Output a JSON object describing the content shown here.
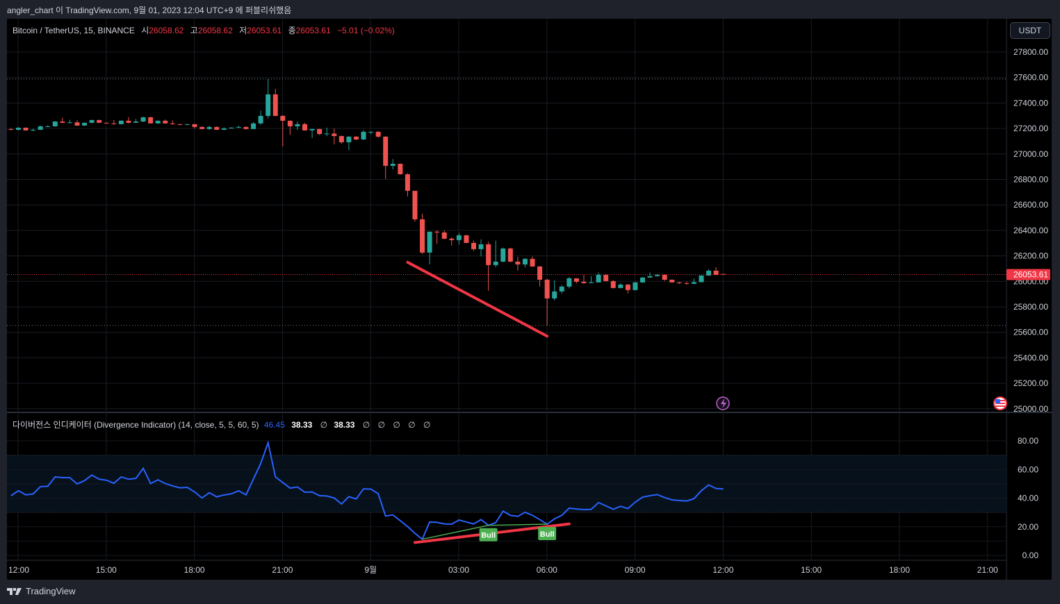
{
  "header": {
    "publish_note": "angler_chart 이 TradingView.com, 9월 01, 2023 12:04 UTC+9 에 퍼블리쉬했음"
  },
  "legend": {
    "symbol": "Bitcoin / TetherUS, 15, BINANCE",
    "open_label": "시",
    "open": "26058.62",
    "high_label": "고",
    "high": "26058.62",
    "low_label": "저",
    "low": "26053.61",
    "close_label": "종",
    "close": "26053.61",
    "change": "−5.01 (−0.02%)"
  },
  "currency_button": "USDT",
  "last_price_label": "26053.61",
  "indicator_legend": {
    "title": "다이버전스 인디케이터 (Divergence Indicator) (14, close, 5, 5, 60, 5)",
    "value_rsi": "46.45",
    "value_2": "38.33",
    "value_3": "38.33",
    "empty_values": [
      "∅",
      "∅",
      "∅",
      "∅",
      "∅",
      "∅"
    ]
  },
  "branding": "TradingView",
  "colors": {
    "up": "#26a69a",
    "down": "#ef5350",
    "rsi_line": "#2962ff",
    "bull_label": "#4caf50",
    "drawing": "#f23645",
    "last_price": "#f23645"
  },
  "icons": [
    "lightning-event-icon",
    "us-flag-economic-event-icon",
    "tradingview-logo-icon"
  ],
  "chart_data": [
    {
      "type": "candlestick",
      "title": "Bitcoin / TetherUS, 15, BINANCE",
      "interval": "15",
      "x_tick_labels": [
        "12:00",
        "15:00",
        "18:00",
        "21:00",
        "9월",
        "03:00",
        "06:00",
        "09:00",
        "12:00",
        "15:00",
        "18:00",
        "21:00"
      ],
      "y_tick_labels": [
        "27800.00",
        "27600.00",
        "27400.00",
        "27200.00",
        "27000.00",
        "26800.00",
        "26600.00",
        "26400.00",
        "26200.00",
        "26000.00",
        "25800.00",
        "25600.00",
        "25400.00",
        "25200.00",
        "25000.00"
      ],
      "ylim": [
        25000,
        27800
      ],
      "grid": true,
      "ohlc": [
        [
          27195,
          27205,
          27185,
          27190
        ],
        [
          27190,
          27212,
          27185,
          27206
        ],
        [
          27206,
          27210,
          27182,
          27185
        ],
        [
          27185,
          27198,
          27180,
          27190
        ],
        [
          27190,
          27222,
          27188,
          27217
        ],
        [
          27217,
          27226,
          27214,
          27217
        ],
        [
          27217,
          27258,
          27214,
          27255
        ],
        [
          27255,
          27285,
          27242,
          27245
        ],
        [
          27245,
          27268,
          27244,
          27248
        ],
        [
          27248,
          27265,
          27220,
          27223
        ],
        [
          27223,
          27248,
          27220,
          27245
        ],
        [
          27245,
          27270,
          27240,
          27266
        ],
        [
          27266,
          27270,
          27242,
          27245
        ],
        [
          27245,
          27248,
          27238,
          27240
        ],
        [
          27240,
          27266,
          27230,
          27234
        ],
        [
          27234,
          27264,
          27232,
          27261
        ],
        [
          27261,
          27290,
          27240,
          27245
        ],
        [
          27245,
          27275,
          27250,
          27255
        ],
        [
          27255,
          27292,
          27250,
          27288
        ],
        [
          27288,
          27293,
          27238,
          27240
        ],
        [
          27240,
          27264,
          27236,
          27261
        ],
        [
          27261,
          27270,
          27238,
          27240
        ],
        [
          27240,
          27262,
          27230,
          27234
        ],
        [
          27234,
          27236,
          27225,
          27229
        ],
        [
          27229,
          27236,
          27226,
          27234
        ],
        [
          27234,
          27236,
          27200,
          27212
        ],
        [
          27212,
          27218,
          27192,
          27196
        ],
        [
          27196,
          27222,
          27190,
          27212
        ],
        [
          27212,
          27216,
          27188,
          27190
        ],
        [
          27190,
          27210,
          27188,
          27201
        ],
        [
          27201,
          27210,
          27200,
          27207
        ],
        [
          27207,
          27222,
          27204,
          27212
        ],
        [
          27212,
          27218,
          27192,
          27196
        ],
        [
          27196,
          27250,
          27194,
          27240
        ],
        [
          27240,
          27340,
          27230,
          27299
        ],
        [
          27299,
          27588,
          27280,
          27468
        ],
        [
          27468,
          27511,
          27296,
          27299
        ],
        [
          27299,
          27305,
          27060,
          27261
        ],
        [
          27261,
          27264,
          27150,
          27217
        ],
        [
          27217,
          27256,
          27190,
          27234
        ],
        [
          27234,
          27245,
          27183,
          27185
        ],
        [
          27185,
          27197,
          27125,
          27196
        ],
        [
          27196,
          27198,
          27148,
          27157
        ],
        [
          27157,
          27207,
          27140,
          27160
        ],
        [
          27160,
          27200,
          27075,
          27141
        ],
        [
          27141,
          27144,
          27080,
          27092
        ],
        [
          27092,
          27140,
          27030,
          27136
        ],
        [
          27136,
          27140,
          27108,
          27114
        ],
        [
          27114,
          27186,
          27110,
          27174
        ],
        [
          27174,
          27178,
          27155,
          27174
        ],
        [
          27174,
          27180,
          27128,
          27136
        ],
        [
          27136,
          27140,
          26804,
          26907
        ],
        [
          26907,
          26960,
          26880,
          26923
        ],
        [
          26923,
          26925,
          26838,
          26841
        ],
        [
          26841,
          26850,
          26667,
          26711
        ],
        [
          26711,
          26711,
          26470,
          26487
        ],
        [
          26487,
          26530,
          26215,
          26226
        ],
        [
          26226,
          26390,
          26133,
          26390
        ],
        [
          26390,
          26400,
          26296,
          26384
        ],
        [
          26384,
          26400,
          26330,
          26335
        ],
        [
          26335,
          26345,
          26280,
          26324
        ],
        [
          26324,
          26380,
          26290,
          26362
        ],
        [
          26362,
          26365,
          26300,
          26302
        ],
        [
          26302,
          26320,
          26240,
          26253
        ],
        [
          26253,
          26330,
          26195,
          26291
        ],
        [
          26291,
          26310,
          25926,
          26128
        ],
        [
          26128,
          26320,
          26110,
          26155
        ],
        [
          26155,
          26265,
          26150,
          26258
        ],
        [
          26258,
          26265,
          26150,
          26155
        ],
        [
          26155,
          26192,
          26085,
          26133
        ],
        [
          26133,
          26182,
          26110,
          26177
        ],
        [
          26177,
          26195,
          26115,
          26117
        ],
        [
          26117,
          26120,
          25960,
          26013
        ],
        [
          26013,
          26020,
          25654,
          25866
        ],
        [
          25866,
          26008,
          25850,
          25921
        ],
        [
          25921,
          25970,
          25905,
          25959
        ],
        [
          25959,
          26035,
          25945,
          26024
        ],
        [
          26024,
          26025,
          25985,
          25997
        ],
        [
          25997,
          26050,
          25982,
          25986
        ],
        [
          25986,
          26040,
          25985,
          25992
        ],
        [
          25992,
          26070,
          25990,
          26051
        ],
        [
          26051,
          26058,
          26000,
          26002
        ],
        [
          26002,
          26010,
          25945,
          25948
        ],
        [
          25948,
          25984,
          25945,
          25975
        ],
        [
          25975,
          25978,
          25905,
          25932
        ],
        [
          25932,
          25995,
          25930,
          25992
        ],
        [
          25992,
          26034,
          25988,
          26030
        ],
        [
          26030,
          26070,
          26030,
          26041
        ],
        [
          26041,
          26058,
          26038,
          26051
        ],
        [
          26051,
          26055,
          26004,
          26013
        ],
        [
          26013,
          26016,
          25990,
          25992
        ],
        [
          25992,
          25996,
          25980,
          25986
        ],
        [
          25986,
          25998,
          25974,
          25981
        ],
        [
          25981,
          26022,
          25978,
          25994
        ],
        [
          25994,
          26048,
          25992,
          26046
        ],
        [
          26046,
          26095,
          26044,
          26084
        ],
        [
          26084,
          26110,
          26048,
          26051
        ],
        [
          26058.62,
          26058.62,
          26053.61,
          26053.61
        ]
      ],
      "last_price": 26053.61,
      "trendline": {
        "from": {
          "bar": 54,
          "price": 26150
        },
        "to": {
          "bar": 73,
          "price": 25570
        }
      }
    },
    {
      "type": "line",
      "title": "다이버전스 인디케이터 (Divergence Indicator) (14, close, 5, 5, 60, 5)",
      "y_tick_labels": [
        "80.00",
        "60.00",
        "40.00",
        "20.00",
        "0.00"
      ],
      "ylim": [
        0,
        80
      ],
      "band": [
        30,
        70
      ],
      "midline": 50,
      "values": [
        41.7,
        45.2,
        42.3,
        42.9,
        48.0,
        48.3,
        54.8,
        54.3,
        54.3,
        49.9,
        52.2,
        56.1,
        53.2,
        52.5,
        50.4,
        54.8,
        53.2,
        53.8,
        60.8,
        50.2,
        52.8,
        50.2,
        48.5,
        47.2,
        47.5,
        44.3,
        40.1,
        43.8,
        40.9,
        42.2,
        43.0,
        45.1,
        42.3,
        53.3,
        64.2,
        78.7,
        54.8,
        50.9,
        47.0,
        47.8,
        44.1,
        44.3,
        41.7,
        41.5,
        40.1,
        35.9,
        41.0,
        39.4,
        46.5,
        46.3,
        43.1,
        27.5,
        28.3,
        24.2,
        20.2,
        15.4,
        11.3,
        23.3,
        23.1,
        22.0,
        21.8,
        24.7,
        23.3,
        22.0,
        25.0,
        21.0,
        22.9,
        30.9,
        28.0,
        27.3,
        30.1,
        28.0,
        25.0,
        21.8,
        25.5,
        28.0,
        33.0,
        32.4,
        32.0,
        32.2,
        36.9,
        34.6,
        32.2,
        34.3,
        32.7,
        37.2,
        40.7,
        41.7,
        42.5,
        40.4,
        38.8,
        38.3,
        38.0,
        39.6,
        45.2,
        49.2,
        46.7,
        46.45
      ],
      "divergence_line": [
        {
          "bar": 56,
          "value": 11.3
        },
        {
          "bar": 65,
          "value": 21.0
        },
        {
          "bar": 73,
          "value": 21.8
        }
      ],
      "signals": [
        {
          "bar": 65,
          "label": "Bull"
        },
        {
          "bar": 73,
          "label": "Bull"
        }
      ],
      "trendline": {
        "from": {
          "bar": 55,
          "value": 9
        },
        "to": {
          "bar": 76,
          "value": 22
        }
      }
    }
  ]
}
